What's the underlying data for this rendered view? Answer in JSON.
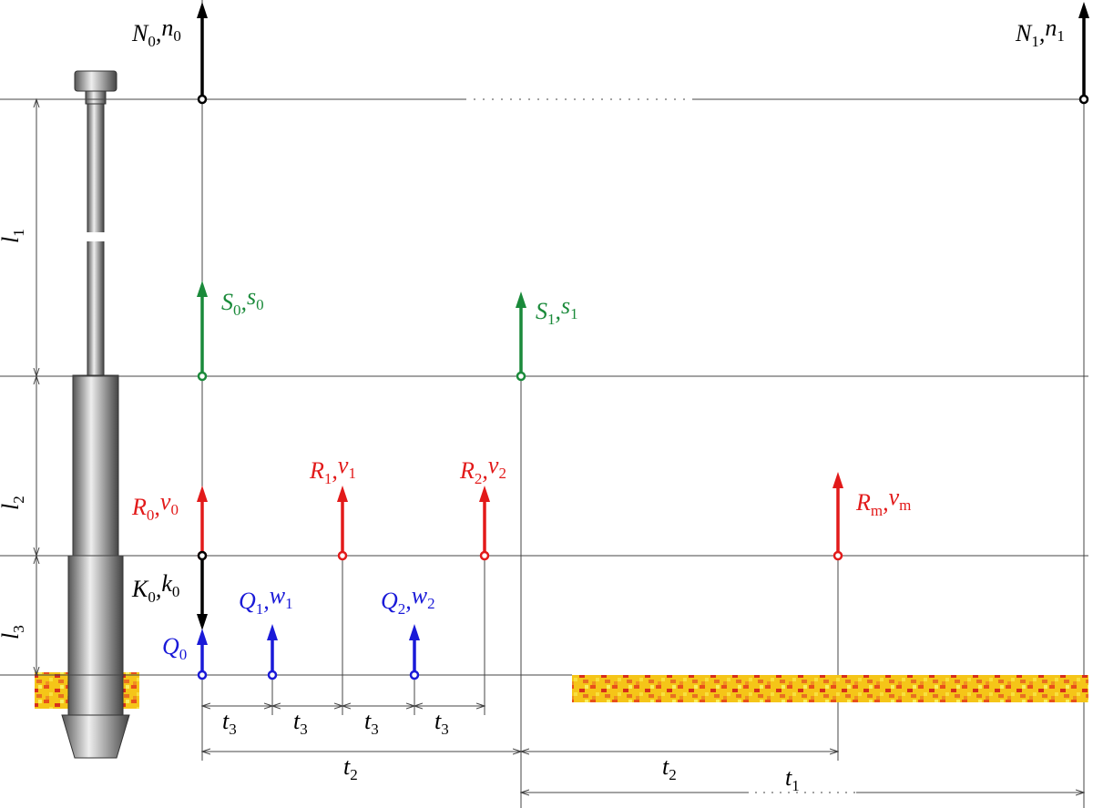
{
  "vectors": [
    {
      "symbol": "N",
      "subscript": "0",
      "separator": ",",
      "unit": "n",
      "unit_subscript": "0"
    },
    {
      "symbol": "N",
      "subscript": "1",
      "separator": ",",
      "unit": "n",
      "unit_subscript": "1"
    },
    {
      "symbol": "S",
      "subscript": "0",
      "separator": ",",
      "unit": "s",
      "unit_subscript": "0"
    },
    {
      "symbol": "S",
      "subscript": "1",
      "separator": ",",
      "unit": "s",
      "unit_subscript": "1"
    },
    {
      "symbol": "R",
      "subscript": "0",
      "separator": ",",
      "unit": "v",
      "unit_subscript": "0"
    },
    {
      "symbol": "R",
      "subscript": "1",
      "separator": ",",
      "unit": "v",
      "unit_subscript": "1"
    },
    {
      "symbol": "R",
      "subscript": "2",
      "separator": ",",
      "unit": "v",
      "unit_subscript": "2"
    },
    {
      "symbol": "R",
      "subscript": "m",
      "separator": ",",
      "unit": "v",
      "unit_subscript": "m"
    },
    {
      "symbol": "K",
      "subscript": "0",
      "separator": ",",
      "unit": "k",
      "unit_subscript": "0"
    },
    {
      "symbol": "Q",
      "subscript": "1",
      "separator": ",",
      "unit": "w",
      "unit_subscript": "1"
    },
    {
      "symbol": "Q",
      "subscript": "2",
      "separator": ",",
      "unit": "w",
      "unit_subscript": "2"
    },
    {
      "symbol": "Q",
      "subscript": "0"
    }
  ],
  "dimensions": [
    {
      "symbol": "l",
      "subscript": "1"
    },
    {
      "symbol": "l",
      "subscript": "2"
    },
    {
      "symbol": "l",
      "subscript": "3"
    },
    {
      "symbol": "t",
      "subscript": "3"
    },
    {
      "symbol": "t",
      "subscript": "3"
    },
    {
      "symbol": "t",
      "subscript": "3"
    },
    {
      "symbol": "t",
      "subscript": "3"
    },
    {
      "symbol": "t",
      "subscript": "2"
    },
    {
      "symbol": "t",
      "subscript": "2"
    },
    {
      "symbol": "t",
      "subscript": "1"
    }
  ]
}
